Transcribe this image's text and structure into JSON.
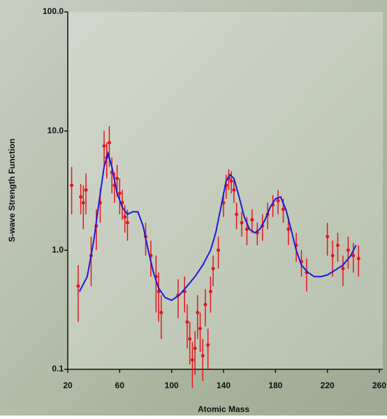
{
  "chart_data": {
    "type": "scatter",
    "xlabel": "Atomic Mass",
    "ylabel": "S-wave Strength Function",
    "xlim": [
      20,
      260
    ],
    "xticks": [
      20,
      60,
      100,
      140,
      180,
      220,
      260
    ],
    "ylim": [
      0.1,
      100
    ],
    "log_y": true,
    "yticks": [
      {
        "value": 100,
        "label": "100.0"
      },
      {
        "value": 10,
        "label": "10.0"
      },
      {
        "value": 1,
        "label": "1.0"
      },
      0.1
    ],
    "series": [
      {
        "style": "errorbar",
        "color": "#e8141b",
        "x": [
          23,
          28,
          30,
          32,
          34,
          38,
          42,
          45,
          48,
          50,
          52,
          54,
          56,
          58,
          60,
          62,
          64,
          66,
          80,
          84,
          88,
          90,
          92,
          105,
          110,
          112,
          114,
          116,
          118,
          120,
          122,
          124,
          126,
          128,
          130,
          132,
          136,
          140,
          142,
          144,
          146,
          148,
          150,
          154,
          158,
          162,
          166,
          170,
          174,
          178,
          182,
          186,
          190,
          196,
          200,
          204,
          220,
          224,
          228,
          232,
          236,
          240,
          244
        ],
        "values": [
          3.5,
          0.5,
          2.8,
          2.5,
          3.2,
          0.9,
          1.6,
          2.5,
          7.5,
          6.0,
          8.0,
          4.5,
          3.5,
          4.0,
          3.0,
          2.5,
          1.9,
          1.7,
          1.3,
          0.9,
          0.6,
          0.45,
          0.3,
          0.42,
          0.45,
          0.25,
          0.18,
          0.12,
          0.15,
          0.3,
          0.22,
          0.13,
          0.35,
          0.16,
          0.45,
          0.7,
          1.0,
          2.5,
          3.5,
          4.0,
          3.8,
          3.2,
          2.0,
          1.7,
          1.5,
          1.8,
          1.4,
          1.6,
          2.0,
          2.4,
          2.6,
          2.2,
          1.5,
          1.1,
          0.8,
          0.65,
          1.3,
          0.9,
          1.1,
          0.7,
          1.0,
          0.9,
          0.85
        ],
        "errors": [
          1.5,
          0.25,
          0.8,
          1.0,
          1.2,
          0.4,
          0.6,
          0.8,
          2.5,
          2.0,
          3.0,
          1.5,
          1.0,
          1.2,
          1.0,
          0.7,
          0.5,
          0.5,
          0.4,
          0.3,
          0.3,
          0.2,
          0.12,
          0.15,
          0.15,
          0.1,
          0.07,
          0.05,
          0.06,
          0.12,
          0.08,
          0.05,
          0.12,
          0.06,
          0.15,
          0.2,
          0.3,
          0.6,
          0.8,
          0.8,
          0.8,
          0.7,
          0.5,
          0.4,
          0.4,
          0.4,
          0.3,
          0.4,
          0.5,
          0.5,
          0.6,
          0.5,
          0.4,
          0.3,
          0.2,
          0.2,
          0.4,
          0.3,
          0.3,
          0.2,
          0.3,
          0.25,
          0.25
        ]
      },
      {
        "style": "line",
        "color": "#1a1adc",
        "x": [
          29,
          35,
          40,
          44,
          48,
          51,
          54,
          58,
          62,
          66,
          70,
          74,
          78,
          82,
          86,
          90,
          95,
          100,
          106,
          112,
          118,
          124,
          130,
          134,
          138,
          142,
          145,
          148,
          152,
          156,
          160,
          164,
          168,
          172,
          176,
          180,
          184,
          188,
          192,
          196,
          200,
          205,
          210,
          215,
          220,
          226,
          232,
          238,
          242
        ],
        "values": [
          0.45,
          0.6,
          1.2,
          2.5,
          5,
          6.5,
          5,
          3,
          2.3,
          2.0,
          2.1,
          2.1,
          1.6,
          1.0,
          0.65,
          0.48,
          0.4,
          0.38,
          0.42,
          0.5,
          0.6,
          0.75,
          1.0,
          1.4,
          2.3,
          3.8,
          4.3,
          4.0,
          2.8,
          1.9,
          1.5,
          1.4,
          1.5,
          1.8,
          2.3,
          2.7,
          2.8,
          2.2,
          1.5,
          1.0,
          0.75,
          0.65,
          0.6,
          0.6,
          0.62,
          0.68,
          0.75,
          0.9,
          1.1
        ]
      }
    ]
  }
}
